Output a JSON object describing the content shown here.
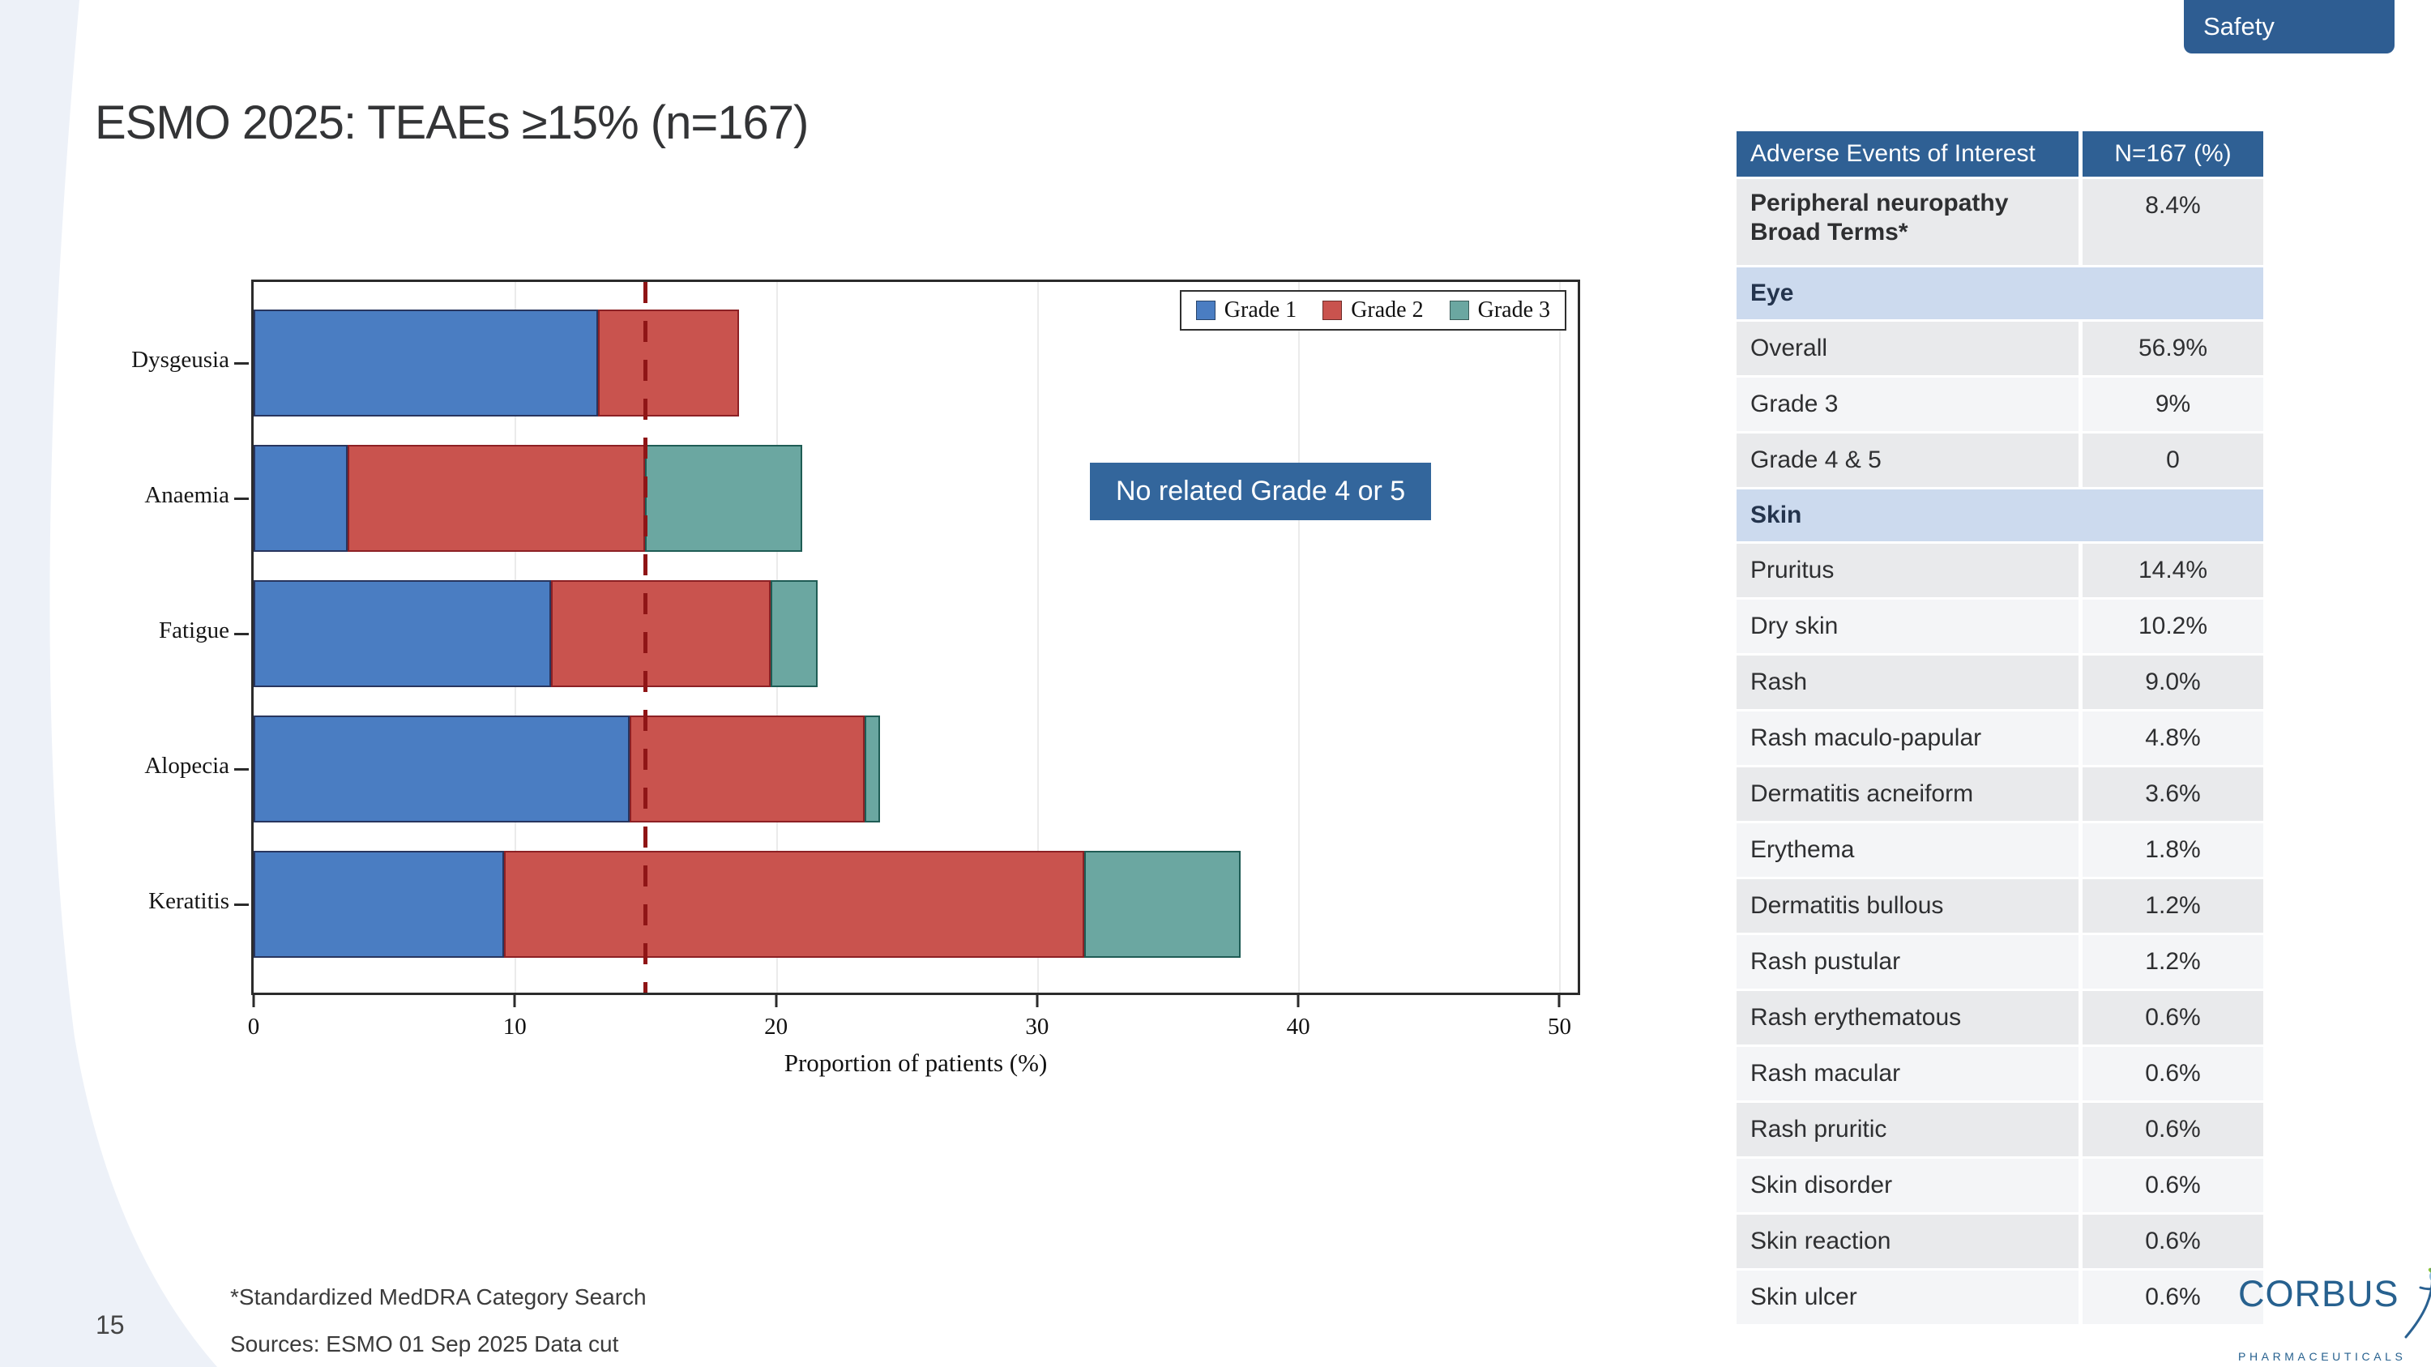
{
  "title": "ESMO 2025: TEAEs ≥15% (n=167)",
  "tab": {
    "label": "Safety"
  },
  "annotation": "No related Grade 4 or 5",
  "footnote": "*Standardized MedDRA Category Search",
  "sources": "Sources: ESMO 01 Sep 2025 Data cut",
  "page_number": "15",
  "logo": {
    "name": "CORBUS",
    "sub": "PHARMACEUTICALS"
  },
  "colors": {
    "header_blue": "#2f6094",
    "tab_blue": "#2e5d92",
    "annotation_blue": "#33669c",
    "section_row_blue": "#ccdaee",
    "row_dark": "#e9eaec",
    "row_light": "#f4f5f7",
    "swoosh": "#edf1f8",
    "reference_line_red": "#8f1516"
  },
  "chart_data": {
    "type": "bar",
    "orientation": "horizontal",
    "stacked": true,
    "title": "",
    "categories": [
      "Dysgeusia",
      "Anaemia",
      "Fatigue",
      "Alopecia",
      "Keratitis"
    ],
    "series": [
      {
        "name": "Grade 1",
        "color": "#4a7dc2",
        "edge": "#28355e",
        "values": [
          13.2,
          3.6,
          11.4,
          14.4,
          9.6
        ]
      },
      {
        "name": "Grade 2",
        "color": "#c9534e",
        "edge": "#8c2024",
        "values": [
          5.4,
          11.4,
          8.4,
          9.0,
          22.2
        ]
      },
      {
        "name": "Grade 3",
        "color": "#6ba7a1",
        "edge": "#1f5c55",
        "values": [
          0,
          6.0,
          1.8,
          0.6,
          6.0
        ]
      }
    ],
    "totals": [
      18.6,
      21.0,
      21.6,
      24.0,
      37.8
    ],
    "xlabel": "Proportion of patients (%)",
    "xlim": [
      0,
      50.7
    ],
    "xticks": [
      0,
      10,
      20,
      30,
      40,
      50
    ],
    "reference_line": {
      "x": 15,
      "style": "dashed",
      "color": "#8f1516"
    },
    "grid": "vertical",
    "legend_position": "top-right"
  },
  "table": {
    "columns": [
      "Adverse Events of Interest",
      "N=167 (%)"
    ],
    "rows": [
      {
        "kind": "data",
        "label": "Peripheral neuropathy\nBroad Terms*",
        "value": "8.4%",
        "bold": true,
        "tall": true
      },
      {
        "kind": "section",
        "label": "Eye"
      },
      {
        "kind": "data",
        "label": "Overall",
        "value": "56.9%"
      },
      {
        "kind": "data",
        "label": "Grade 3",
        "value": "9%"
      },
      {
        "kind": "data",
        "label": "Grade 4 & 5",
        "value": "0"
      },
      {
        "kind": "section",
        "label": "Skin"
      },
      {
        "kind": "data",
        "label": "Pruritus",
        "value": "14.4%"
      },
      {
        "kind": "data",
        "label": "Dry skin",
        "value": "10.2%"
      },
      {
        "kind": "data",
        "label": "Rash",
        "value": "9.0%"
      },
      {
        "kind": "data",
        "label": "Rash maculo-papular",
        "value": "4.8%"
      },
      {
        "kind": "data",
        "label": "Dermatitis acneiform",
        "value": "3.6%"
      },
      {
        "kind": "data",
        "label": "Erythema",
        "value": "1.8%"
      },
      {
        "kind": "data",
        "label": "Dermatitis bullous",
        "value": "1.2%"
      },
      {
        "kind": "data",
        "label": "Rash pustular",
        "value": "1.2%"
      },
      {
        "kind": "data",
        "label": "Rash erythematous",
        "value": "0.6%"
      },
      {
        "kind": "data",
        "label": "Rash macular",
        "value": "0.6%"
      },
      {
        "kind": "data",
        "label": "Rash pruritic",
        "value": "0.6%"
      },
      {
        "kind": "data",
        "label": "Skin disorder",
        "value": "0.6%"
      },
      {
        "kind": "data",
        "label": "Skin reaction",
        "value": "0.6%"
      },
      {
        "kind": "data",
        "label": "Skin ulcer",
        "value": "0.6%"
      }
    ]
  }
}
